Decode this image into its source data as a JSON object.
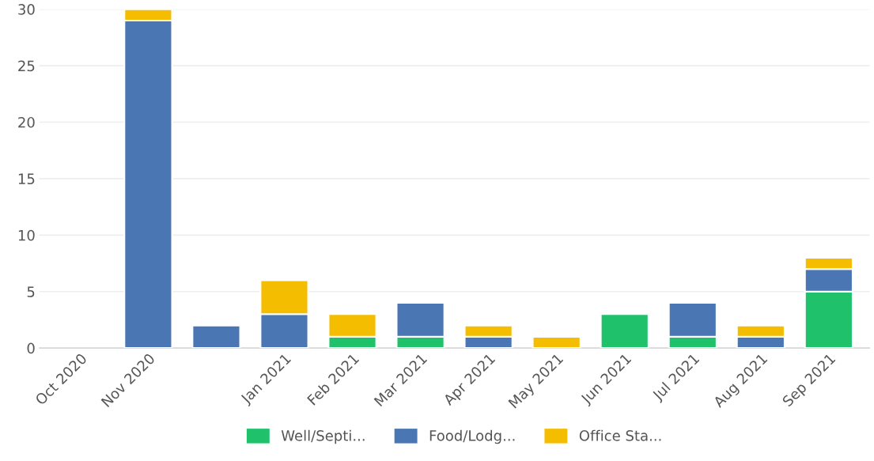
{
  "chart_data": {
    "type": "bar",
    "stacked": true,
    "categories": [
      "Oct 2020",
      "Nov 2020",
      null,
      "Jan 2021",
      "Feb 2021",
      "Mar 2021",
      "Apr 2021",
      "May 2021",
      "Jun 2021",
      "Jul 2021",
      "Aug 2021",
      "Sep 2021"
    ],
    "series": [
      {
        "name": "Well/Septi...",
        "color": "#1fc26b",
        "values": [
          0,
          0,
          0,
          0,
          1,
          1,
          0,
          0,
          3,
          1,
          0,
          5
        ]
      },
      {
        "name": "Food/Lodg...",
        "color": "#4a77b4",
        "values": [
          0,
          29,
          2,
          3,
          0,
          3,
          1,
          0,
          0,
          3,
          1,
          2
        ]
      },
      {
        "name": "Office Sta...",
        "color": "#f4bd00",
        "values": [
          0,
          1,
          0,
          3,
          2,
          0,
          1,
          1,
          0,
          0,
          1,
          1
        ]
      }
    ],
    "ylim": [
      0,
      30
    ],
    "yticks": [
      0,
      5,
      10,
      15,
      20,
      25,
      30
    ],
    "grid": "y",
    "legend": "bottom"
  }
}
